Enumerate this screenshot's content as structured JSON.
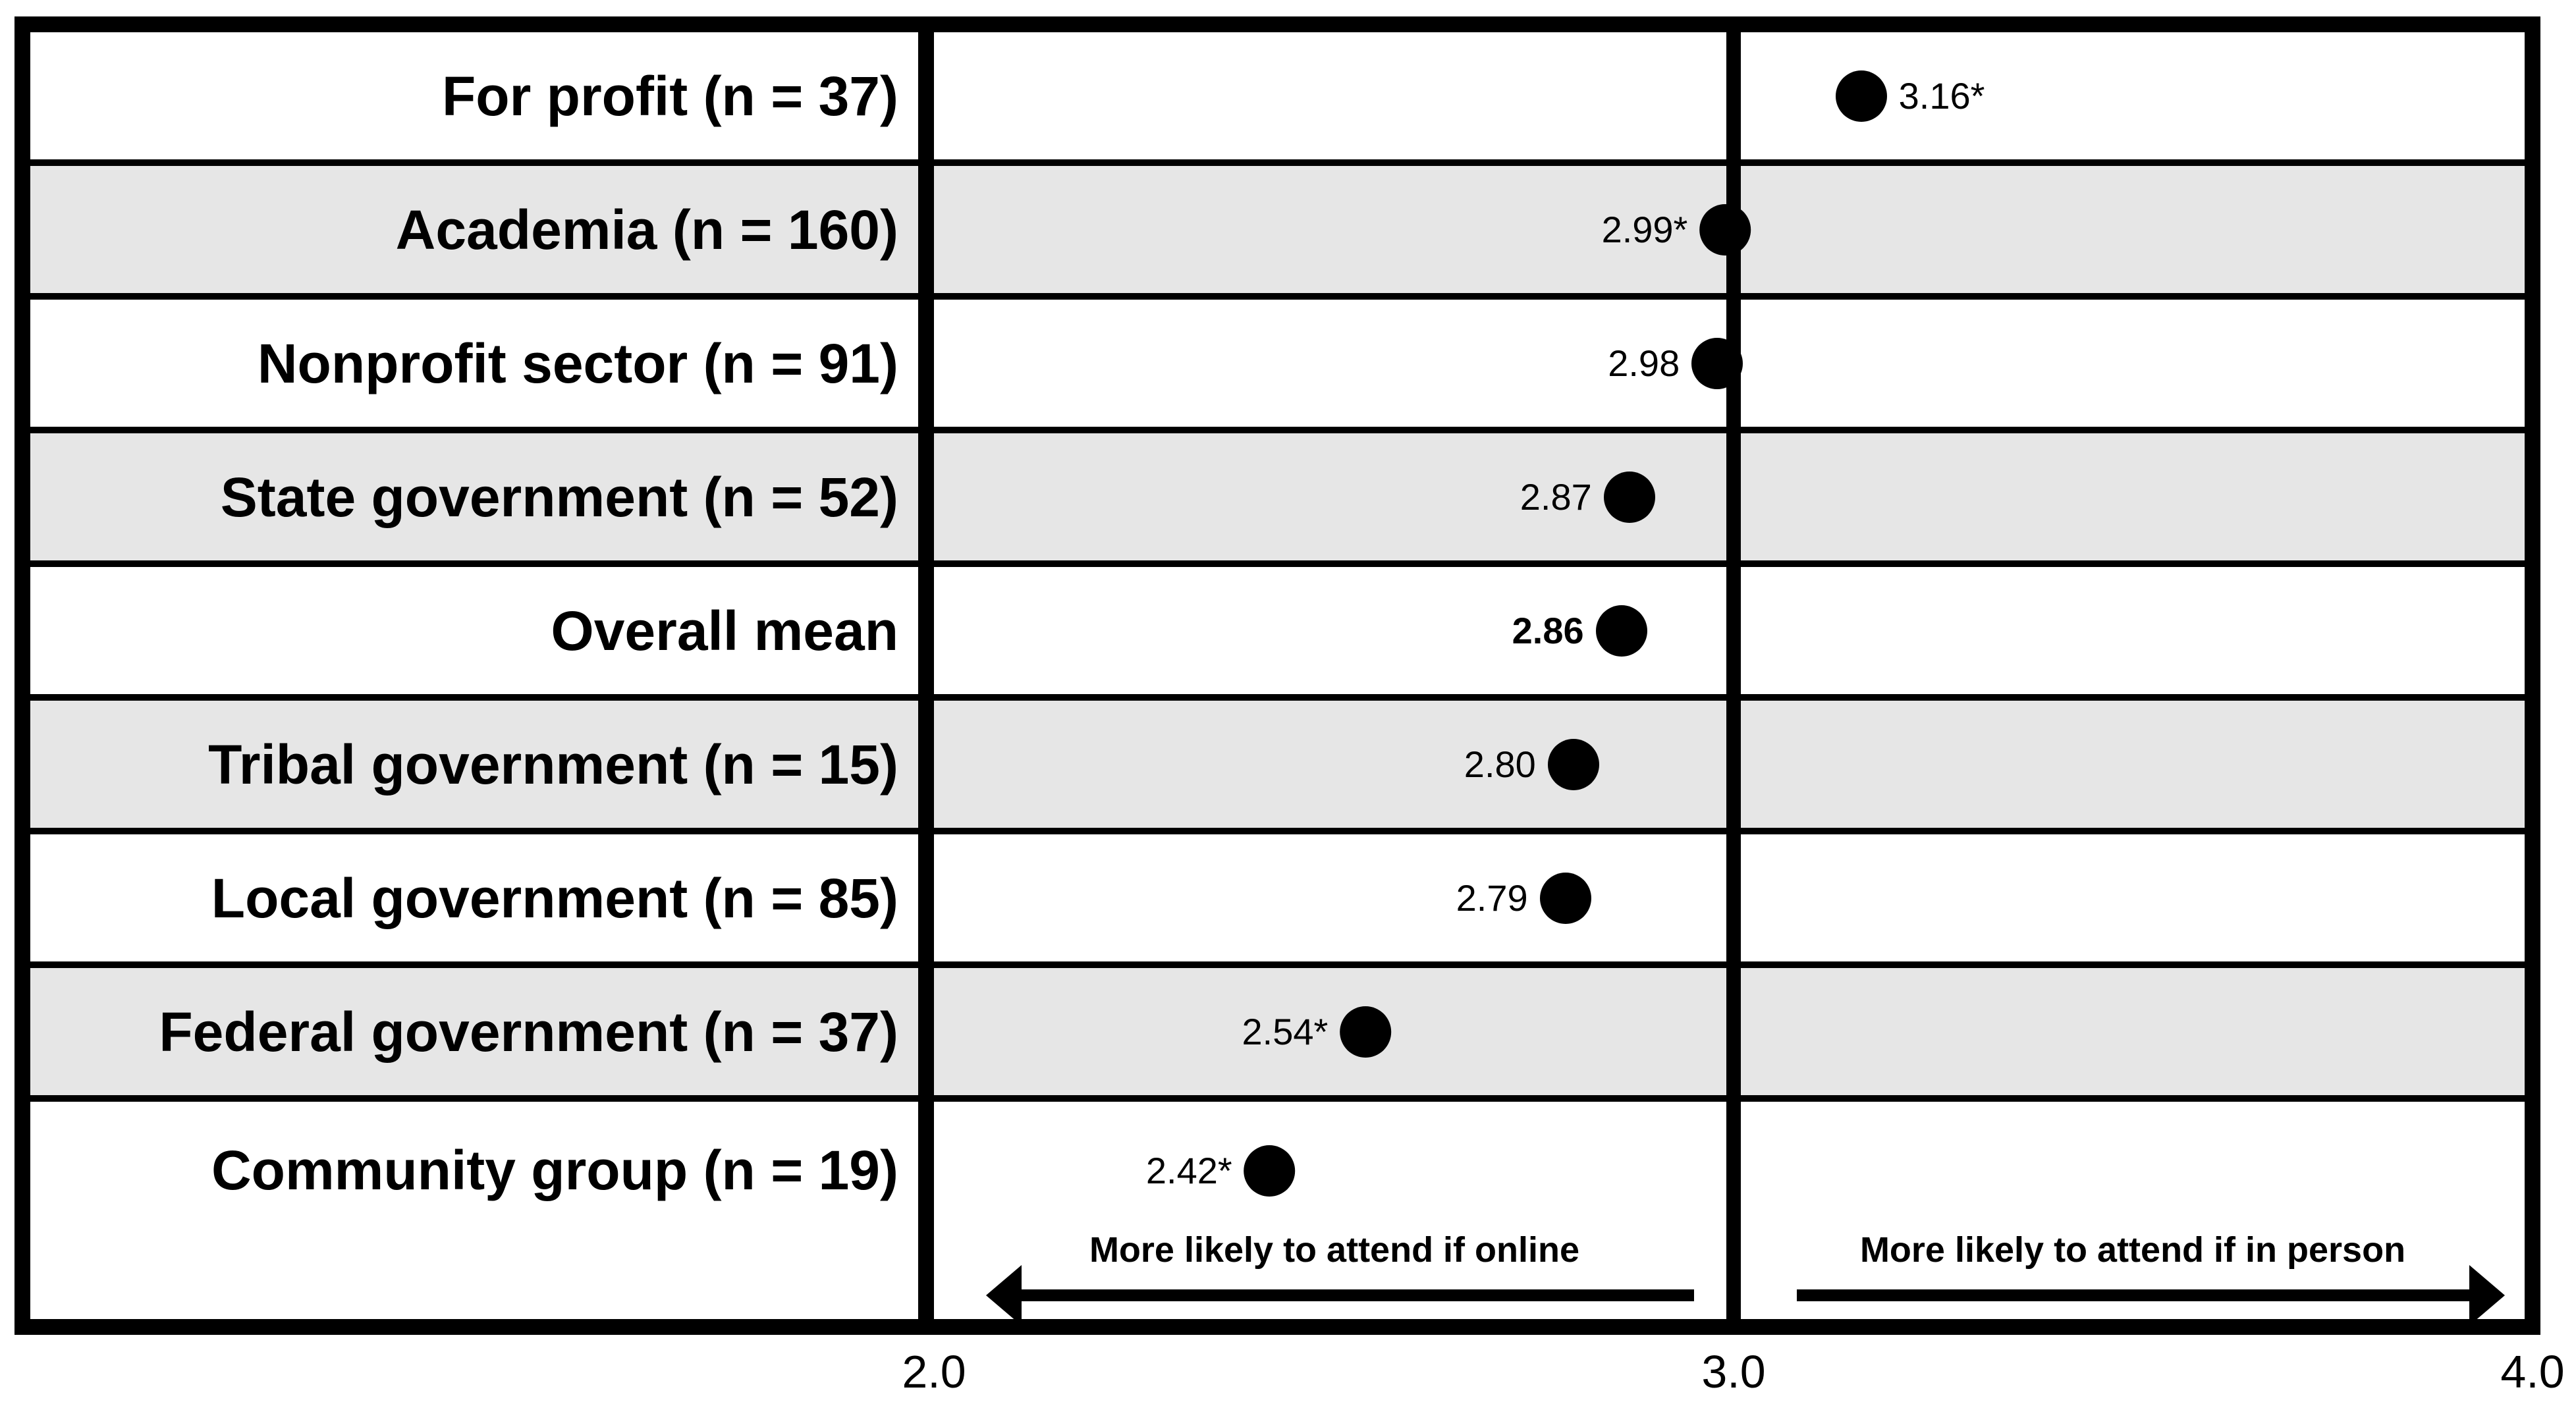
{
  "chart_data": {
    "type": "scatter",
    "subtype": "horizontal-dot-plot-table",
    "categories": [
      "For profit (n = 37)",
      "Academia (n = 160)",
      "Nonprofit sector (n = 91)",
      "State government (n = 52)",
      "Overall mean",
      "Tribal government (n = 15)",
      "Local government (n = 85)",
      "Federal government (n = 37)",
      "Community group (n = 19)"
    ],
    "values": [
      3.16,
      2.99,
      2.98,
      2.87,
      2.86,
      2.8,
      2.79,
      2.54,
      2.42
    ],
    "point_labels": [
      "3.16*",
      "2.99*",
      "2.98",
      "2.87",
      "2.86",
      "2.80",
      "2.79",
      "2.54*",
      "2.42*"
    ],
    "value_label_side": [
      "right",
      "left",
      "left",
      "left",
      "left",
      "left",
      "left",
      "left",
      "left"
    ],
    "value_label_bold": [
      false,
      false,
      false,
      false,
      true,
      false,
      false,
      false,
      false
    ],
    "shaded_rows": [
      false,
      true,
      false,
      true,
      false,
      true,
      false,
      true,
      false
    ],
    "xlim": [
      2.0,
      4.0
    ],
    "x_ticks": [
      "2.0",
      "3.0",
      "4.0"
    ],
    "x_tick_values": [
      2.0,
      3.0,
      4.0
    ],
    "gridline_at": 3.0,
    "annotations": {
      "left_arrow": "More likely to attend if online",
      "right_arrow": "More likely to attend if in person"
    },
    "colors": {
      "dot": "#000000",
      "border": "#000000",
      "shade": "#e6e6e6",
      "background": "#ffffff"
    },
    "legend": "none",
    "title": ""
  }
}
